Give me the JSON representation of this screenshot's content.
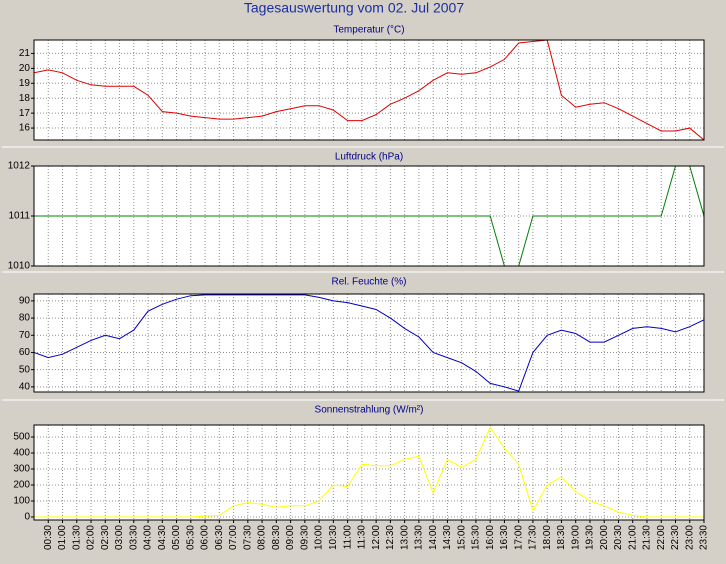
{
  "title": "Tagesauswertung vom 02. Jul 2007",
  "chart_data": [
    {
      "type": "line",
      "title": "Temperatur (°C)",
      "color": "#e00000",
      "grid": true,
      "ylim": [
        15.2,
        21.9
      ],
      "yticks": [
        16,
        17,
        18,
        19,
        20,
        21
      ],
      "values": [
        19.7,
        19.9,
        19.7,
        19.2,
        18.9,
        18.8,
        18.8,
        18.8,
        18.2,
        17.1,
        17.0,
        16.8,
        16.7,
        16.6,
        16.6,
        16.7,
        16.8,
        17.1,
        17.3,
        17.5,
        17.5,
        17.2,
        16.5,
        16.5,
        16.9,
        17.6,
        18.0,
        18.5,
        19.2,
        19.7,
        19.6,
        19.7,
        20.1,
        20.6,
        21.7,
        21.8,
        21.9,
        18.2,
        17.4,
        17.6,
        17.7,
        17.3,
        16.8,
        16.3,
        15.8,
        15.8,
        16.0,
        15.2
      ]
    },
    {
      "type": "line",
      "title": "Luftdruck (hPa)",
      "color": "#008000",
      "grid": true,
      "ylim": [
        1010,
        1012
      ],
      "yticks": [
        1010,
        1011,
        1012
      ],
      "values": [
        1011,
        1011,
        1011,
        1011,
        1011,
        1011,
        1011,
        1011,
        1011,
        1011,
        1011,
        1011,
        1011,
        1011,
        1011,
        1011,
        1011,
        1011,
        1011,
        1011,
        1011,
        1011,
        1011,
        1011,
        1011,
        1011,
        1011,
        1011,
        1011,
        1011,
        1011,
        1011,
        1011,
        1010,
        1010,
        1011,
        1011,
        1011,
        1011,
        1011,
        1011,
        1011,
        1011,
        1011,
        1011,
        1012,
        1012,
        1011
      ]
    },
    {
      "type": "line",
      "title": "Rel. Feuchte (%)",
      "color": "#0000c0",
      "grid": true,
      "ylim": [
        37,
        94
      ],
      "yticks": [
        40,
        50,
        60,
        70,
        80,
        90
      ],
      "values": [
        60,
        57,
        59,
        63,
        67,
        70,
        68,
        73,
        84,
        88,
        91,
        93,
        93.5,
        93.5,
        93.5,
        93.5,
        93.5,
        93.5,
        93.5,
        93.5,
        92,
        90,
        89,
        87,
        85,
        80,
        74,
        69,
        60,
        57,
        54,
        49,
        42,
        40,
        37.5,
        60,
        70,
        73,
        71,
        66,
        66,
        70,
        74,
        75,
        74,
        72,
        75,
        79
      ]
    },
    {
      "type": "line",
      "title": "Sonnenstrahlung (W/m²)",
      "color": "#ffff00",
      "grid": true,
      "ylim": [
        -19,
        575
      ],
      "yticks": [
        0,
        100,
        200,
        300,
        400,
        500
      ],
      "categories": [
        null,
        "00:30",
        "01:00",
        "01:30",
        "02:00",
        "02:30",
        "03:00",
        "03:30",
        "04:00",
        "04:30",
        "05:00",
        "05:30",
        "06:00",
        "06:30",
        "07:00",
        "07:30",
        "08:00",
        "08:30",
        "09:00",
        "09:30",
        "10:00",
        "10:30",
        "11:00",
        "11:30",
        "12:00",
        "12:30",
        "13:00",
        "13:30",
        "14:00",
        "14:30",
        "15:00",
        "15:30",
        "16:00",
        "16:30",
        "17:00",
        "17:30",
        "18:00",
        "18:30",
        "19:00",
        "19:30",
        "20:00",
        "20:30",
        "21:00",
        "21:30",
        "22:00",
        "22:30",
        "23:00",
        "23:30"
      ],
      "values": [
        0,
        0,
        0,
        0,
        0,
        0,
        0,
        0,
        0,
        0,
        0,
        0,
        5,
        10,
        70,
        90,
        80,
        60,
        70,
        70,
        100,
        200,
        190,
        330,
        320,
        320,
        360,
        380,
        150,
        360,
        310,
        360,
        560,
        430,
        330,
        40,
        200,
        250,
        160,
        100,
        70,
        30,
        10,
        0,
        0,
        0,
        0,
        0
      ]
    }
  ]
}
